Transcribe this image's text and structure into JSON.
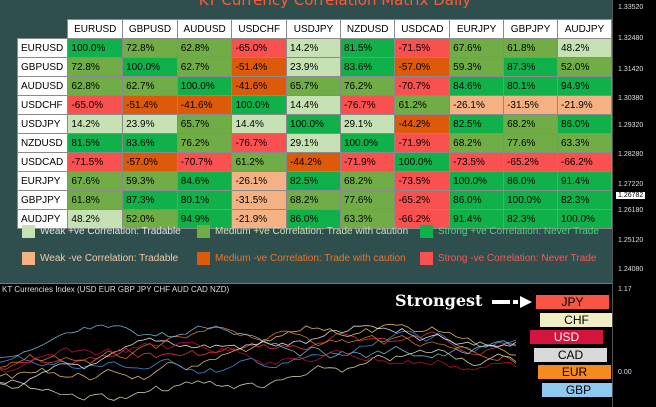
{
  "title": "KT Currency Correlation Matrix Daily",
  "columns": [
    "EURUSD",
    "GBPUSD",
    "AUDUSD",
    "USDCHF",
    "USDJPY",
    "NZDUSD",
    "USDCAD",
    "EURJPY",
    "GBPJPY",
    "AUDJPY"
  ],
  "rows": [
    {
      "label": "EURUSD",
      "values": [
        "100.0%",
        "72.8%",
        "62.8%",
        "-65.0%",
        "14.2%",
        "81.5%",
        "-71.5%",
        "67.6%",
        "61.8%",
        "48.2%"
      ]
    },
    {
      "label": "GBPUSD",
      "values": [
        "72.8%",
        "100.0%",
        "62.7%",
        "-51.4%",
        "23.9%",
        "83.6%",
        "-57.0%",
        "59.3%",
        "87.3%",
        "52.0%"
      ]
    },
    {
      "label": "AUDUSD",
      "values": [
        "62.8%",
        "62.7%",
        "100.0%",
        "-41.6%",
        "65.7%",
        "76.2%",
        "-70.7%",
        "84.6%",
        "80.1%",
        "94.9%"
      ]
    },
    {
      "label": "USDCHF",
      "values": [
        "-65.0%",
        "-51.4%",
        "-41.6%",
        "100.0%",
        "14.4%",
        "-76.7%",
        "61.2%",
        "-26.1%",
        "-31.5%",
        "-21.9%"
      ]
    },
    {
      "label": "USDJPY",
      "values": [
        "14.2%",
        "23.9%",
        "65.7%",
        "14.4%",
        "100.0%",
        "29.1%",
        "-44.2%",
        "82.5%",
        "68.2%",
        "86.0%"
      ]
    },
    {
      "label": "NZDUSD",
      "values": [
        "81.5%",
        "83.6%",
        "76.2%",
        "-76.7%",
        "29.1%",
        "100.0%",
        "-71.9%",
        "68.2%",
        "77.6%",
        "63.3%"
      ]
    },
    {
      "label": "USDCAD",
      "values": [
        "-71.5%",
        "-57.0%",
        "-70.7%",
        "61.2%",
        "-44.2%",
        "-71.9%",
        "100.0%",
        "-73.5%",
        "-65.2%",
        "-66.2%"
      ]
    },
    {
      "label": "EURJPY",
      "values": [
        "67.6%",
        "59.3%",
        "84.6%",
        "-26.1%",
        "82.5%",
        "68.2%",
        "-73.5%",
        "100.0%",
        "86.0%",
        "91.4%"
      ]
    },
    {
      "label": "GBPJPY",
      "values": [
        "61.8%",
        "87.3%",
        "80.1%",
        "-31.5%",
        "68.2%",
        "77.6%",
        "-65.2%",
        "86.0%",
        "100.0%",
        "82.3%"
      ]
    },
    {
      "label": "AUDJPY",
      "values": [
        "48.2%",
        "52.0%",
        "94.9%",
        "-21.9%",
        "86.0%",
        "63.3%",
        "-66.2%",
        "91.4%",
        "82.3%",
        "100.0%"
      ]
    }
  ],
  "colors": {
    "weak_pos": "#c6e2b4",
    "medium_pos": "#70ad47",
    "strong_pos": "#10b14b",
    "weak_neg": "#f4b183",
    "medium_neg": "#dd5a0a",
    "strong_neg": "#f95050",
    "neutral": "#ffffff"
  },
  "legend": [
    {
      "label": "Weak +ve Correlation: Tradable",
      "color": "#c6e2b4",
      "text_color": "#e0e0e0"
    },
    {
      "label": "Medium +ve Correlation: Trade with caution",
      "color": "#70ad47",
      "text_color": "#c9e3b0"
    },
    {
      "label": "Strong +ve Correlation: Never Trade",
      "color": "#10b14b",
      "text_color": "#3ddc74"
    },
    {
      "label": "Weak -ve Correlation: Tradable",
      "color": "#f4b183",
      "text_color": "#f8c9a6"
    },
    {
      "label": "Medium -ve Correlation: Trade with caution",
      "color": "#dd5a0a",
      "text_color": "#f07224"
    },
    {
      "label": "Strong -ve Correlation: Never Trade",
      "color": "#f95050",
      "text_color": "#ff5555"
    }
  ],
  "indicator": {
    "title": "KT Currencies Index (USD EUR GBP JPY CHF AUD CAD NZD)",
    "strongest_label": "Strongest",
    "ranking": [
      {
        "name": "JPY",
        "bg": "#f85545",
        "fg": "#000000"
      },
      {
        "name": "CHF",
        "bg": "#f2eec4",
        "fg": "#000000"
      },
      {
        "name": "USD",
        "bg": "#d3143c",
        "fg": "#ffffff"
      },
      {
        "name": "CAD",
        "bg": "#d9d9d9",
        "fg": "#000000"
      },
      {
        "name": "EUR",
        "bg": "#f58a1f",
        "fg": "#000000"
      },
      {
        "name": "GBP",
        "bg": "#8ec9f0",
        "fg": "#000000"
      }
    ]
  },
  "price_axis": [
    "1.33520",
    "1.32480",
    "1.31420",
    "1.30380",
    "1.29320",
    "1.28280",
    "1.27220",
    "1.26782",
    "1.26180",
    "1.25120",
    "1.24080"
  ],
  "price_axis_highlight": "1.26782",
  "indicator_axis": [
    "1.17",
    "0.00"
  ]
}
